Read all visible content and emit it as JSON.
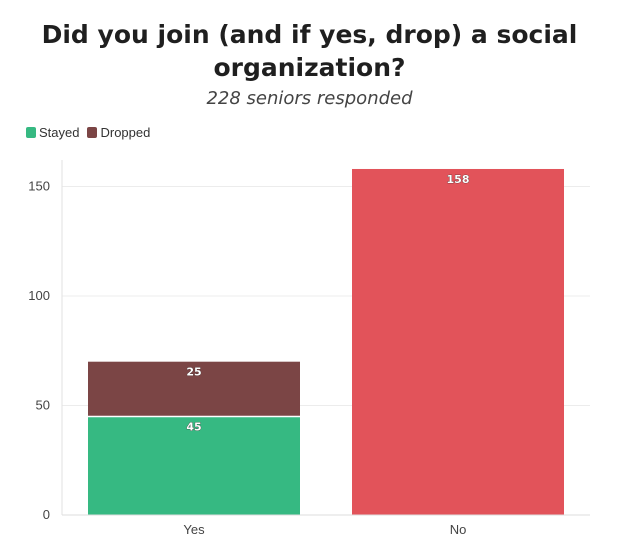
{
  "chart_data": {
    "type": "bar",
    "stacked": true,
    "title": "Did you join (and if yes, drop) a social organization?",
    "title_lines": [
      "Did you join (and if yes, drop) a social",
      "organization?"
    ],
    "subtitle": "228 seniors responded",
    "categories": [
      "Yes",
      "No"
    ],
    "series": [
      {
        "name": "Stayed",
        "color": "#36b982",
        "values": [
          45,
          null
        ]
      },
      {
        "name": "Dropped",
        "color": "#7b4545",
        "values": [
          25,
          null
        ]
      },
      {
        "name": "",
        "color": "#e2535a",
        "values": [
          null,
          158
        ]
      }
    ],
    "ylim": [
      0,
      160
    ],
    "yticks": [
      0,
      50,
      100,
      150
    ],
    "grid": true,
    "legend_position": "top-left",
    "xlabel": "",
    "ylabel": ""
  }
}
